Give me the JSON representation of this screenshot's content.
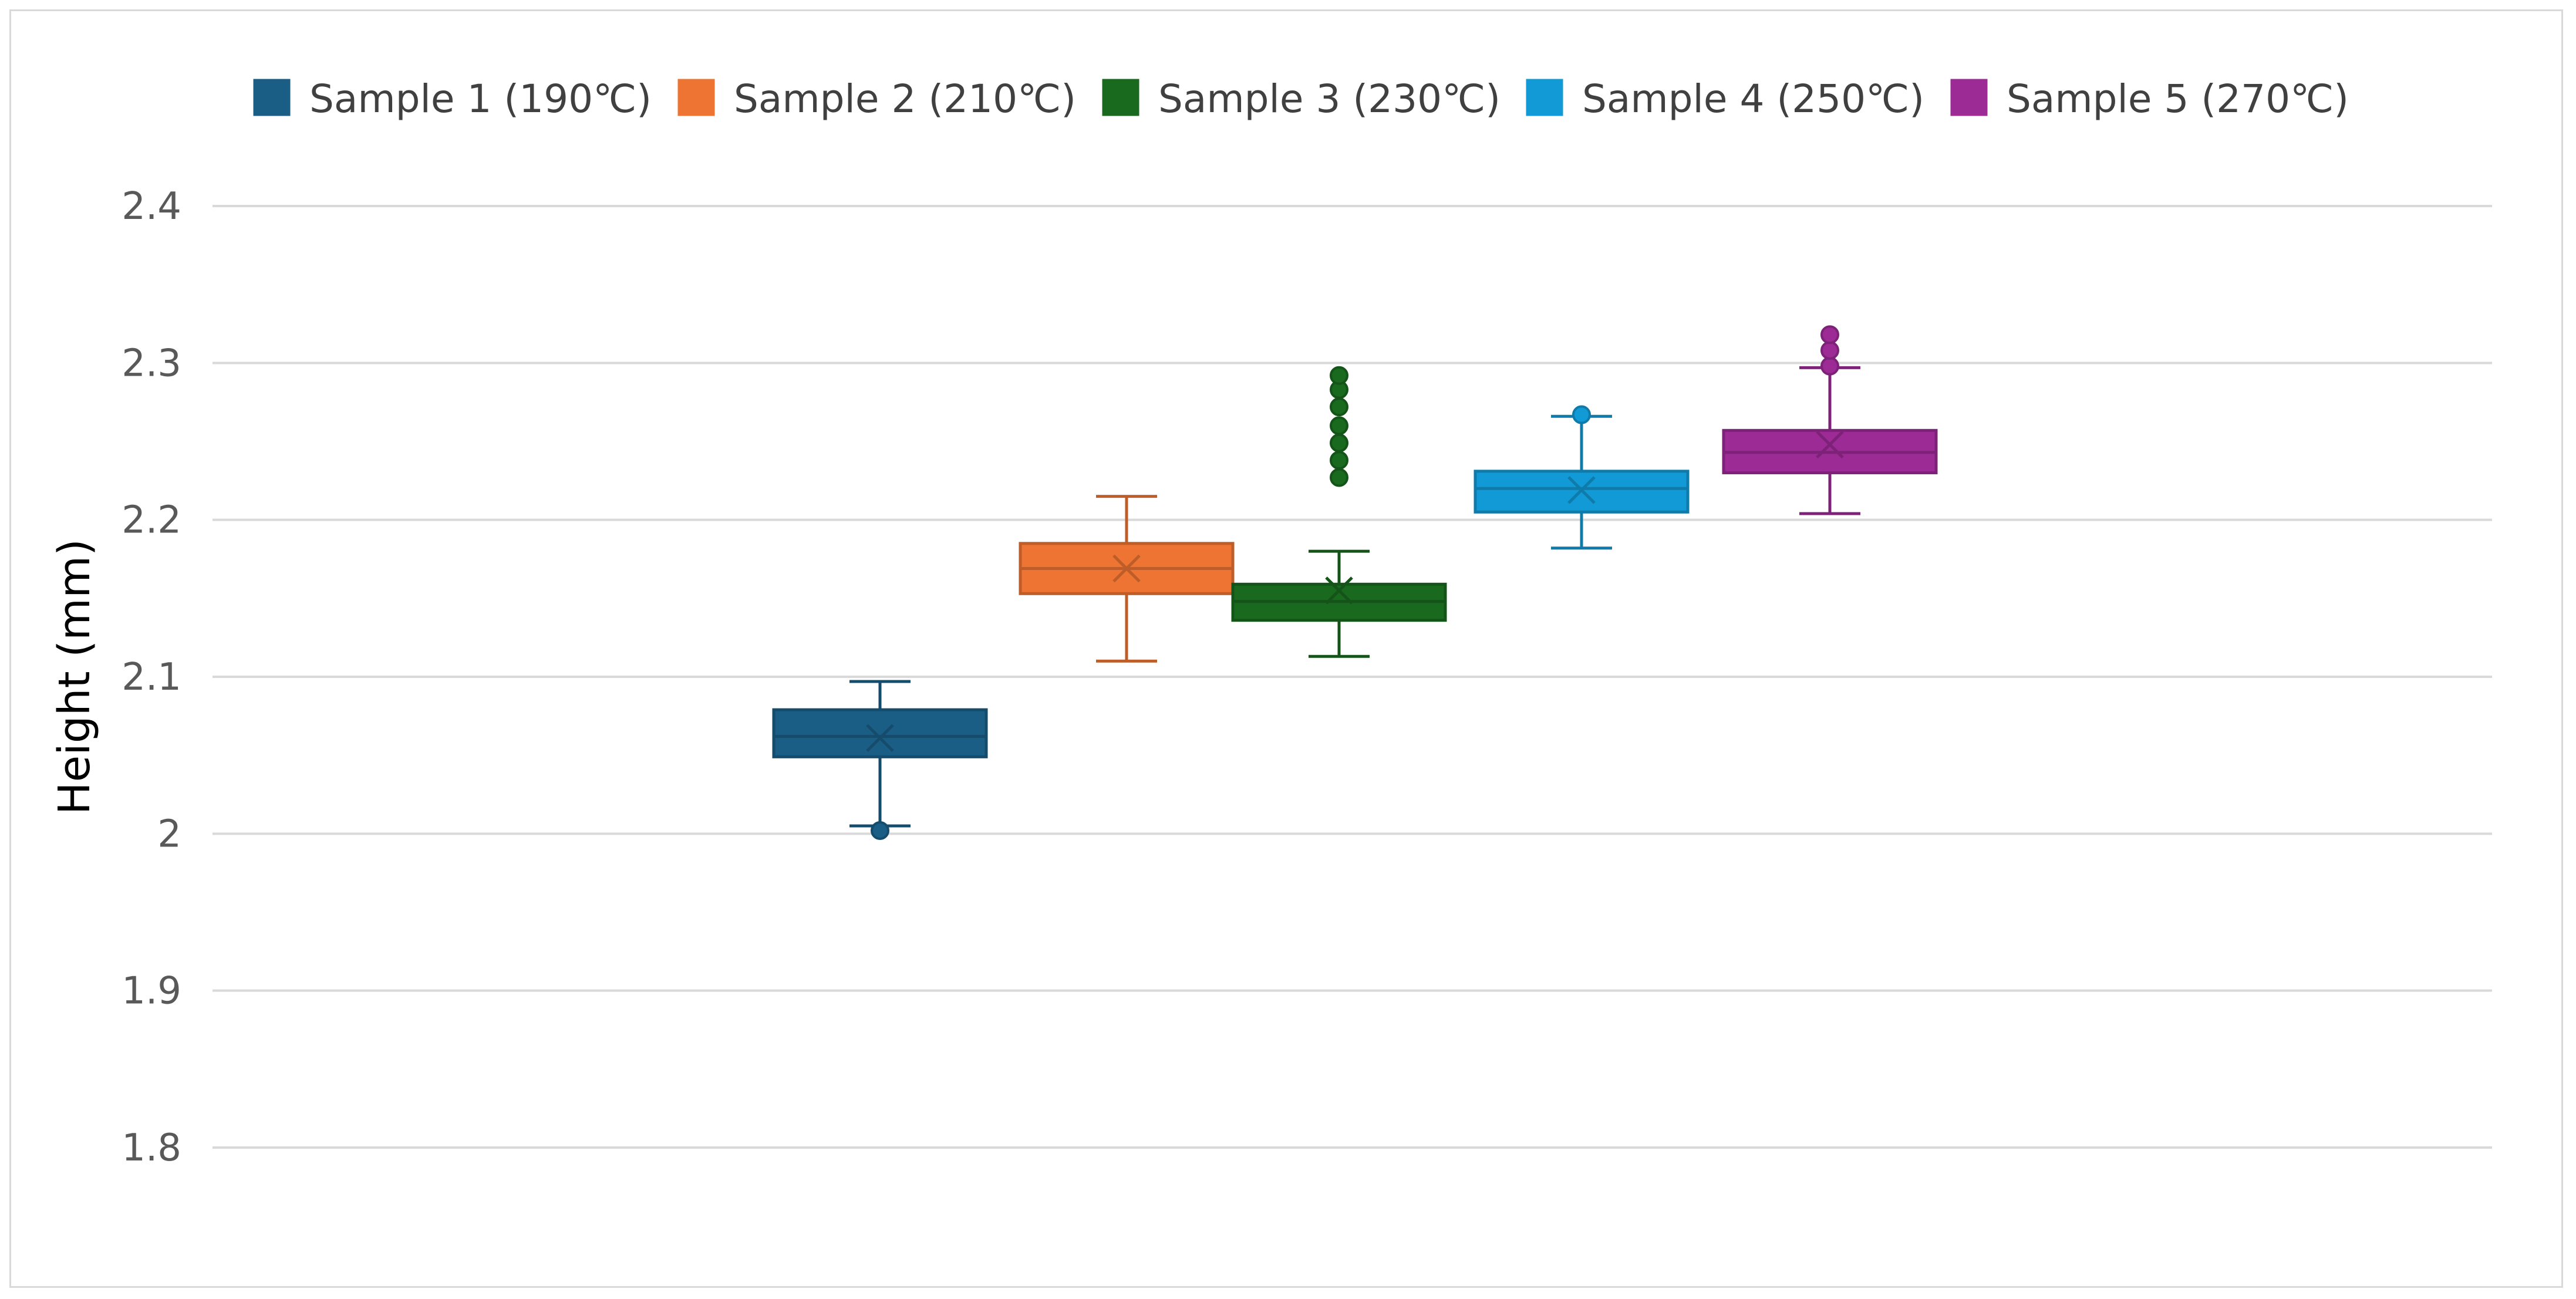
{
  "chart_data": {
    "type": "box",
    "title": "",
    "xlabel": "",
    "ylabel": "Height (mm)",
    "ylim": [
      1.8,
      2.4
    ],
    "yticks": [
      1.8,
      1.9,
      2.0,
      2.1,
      2.2,
      2.3,
      2.4
    ],
    "ytick_labels": [
      "1.8",
      "1.9",
      "2",
      "2.1",
      "2.2",
      "2.3",
      "2.4"
    ],
    "legend_position": "top",
    "grid": true,
    "series": [
      {
        "name": "Sample 1 (190℃)",
        "color": "#1a5e86",
        "whisker_low": 2.005,
        "q1": 2.049,
        "median": 2.062,
        "q3": 2.079,
        "whisker_high": 2.097,
        "mean": 2.061,
        "outliers": [
          2.002
        ]
      },
      {
        "name": "Sample 2 (210℃)",
        "color": "#ed7432",
        "whisker_low": 2.11,
        "q1": 2.153,
        "median": 2.169,
        "q3": 2.185,
        "whisker_high": 2.215,
        "mean": 2.169,
        "outliers": []
      },
      {
        "name": "Sample 3 (230℃)",
        "color": "#19691f",
        "whisker_low": 2.113,
        "q1": 2.136,
        "median": 2.148,
        "q3": 2.159,
        "whisker_high": 2.18,
        "mean": 2.155,
        "outliers": [
          2.227,
          2.238,
          2.249,
          2.26,
          2.272,
          2.283,
          2.292
        ]
      },
      {
        "name": "Sample 4 (250℃)",
        "color": "#119ad5",
        "whisker_low": 2.182,
        "q1": 2.205,
        "median": 2.22,
        "q3": 2.231,
        "whisker_high": 2.266,
        "mean": 2.219,
        "outliers": [
          2.267
        ]
      },
      {
        "name": "Sample 5 (270℃)",
        "color": "#9c2b96",
        "whisker_low": 2.204,
        "q1": 2.23,
        "median": 2.243,
        "q3": 2.257,
        "whisker_high": 2.297,
        "mean": 2.248,
        "outliers": [
          2.298,
          2.308,
          2.318
        ]
      }
    ]
  }
}
